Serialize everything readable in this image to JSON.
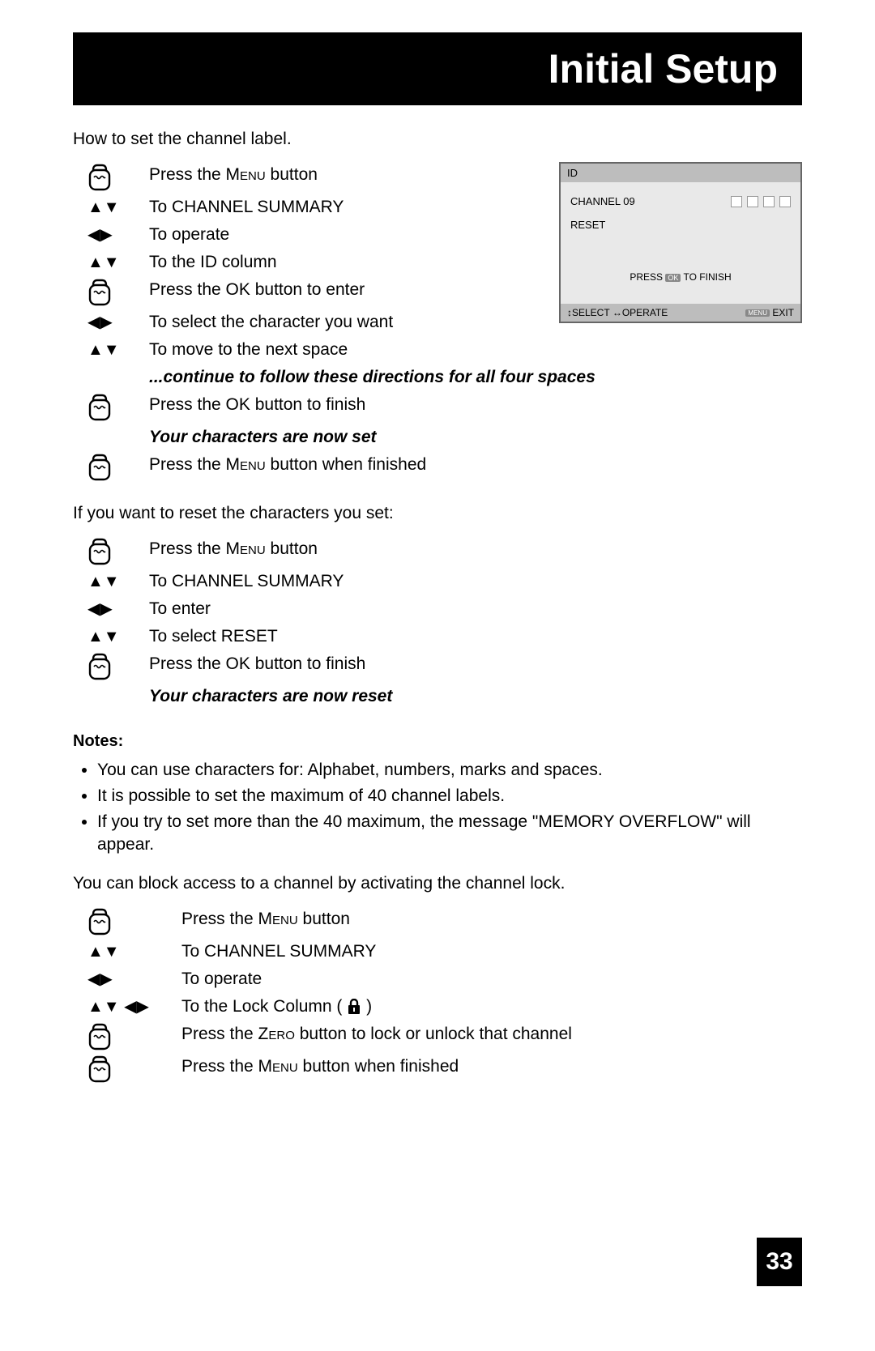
{
  "header": {
    "title": "Initial Setup"
  },
  "section1": {
    "intro": "How to set the channel label.",
    "steps": [
      {
        "icon": "remote",
        "text_prefix": "Press the ",
        "text_small": "Menu",
        "text_suffix": " button"
      },
      {
        "icon": "updown",
        "text": "To CHANNEL SUMMARY"
      },
      {
        "icon": "leftright",
        "text": "To operate"
      },
      {
        "icon": "updown",
        "text": "To the ID column"
      },
      {
        "icon": "remote",
        "text": "Press the OK button to enter"
      },
      {
        "icon": "leftright",
        "text": "To select the character you want"
      },
      {
        "icon": "updown",
        "text": "To move to the next space"
      },
      {
        "icon": "",
        "italic": "...continue to follow these directions for all four spaces"
      },
      {
        "icon": "remote",
        "text": "Press the OK button to finish"
      },
      {
        "icon": "",
        "italic": "Your characters are now set"
      },
      {
        "icon": "remote",
        "text_prefix": "Press the ",
        "text_small": "Menu",
        "text_suffix": " button when finished"
      }
    ]
  },
  "section2": {
    "intro": "If you want to reset the characters you set:",
    "steps": [
      {
        "icon": "remote",
        "text_prefix": "Press the ",
        "text_small": "Menu",
        "text_suffix": " button"
      },
      {
        "icon": "updown",
        "text": "To CHANNEL SUMMARY"
      },
      {
        "icon": "leftright",
        "text": "To enter"
      },
      {
        "icon": "updown",
        "text": "To select RESET"
      },
      {
        "icon": "remote",
        "text": "Press the OK button to finish"
      },
      {
        "icon": "",
        "italic": "Your characters are now reset"
      }
    ]
  },
  "notes": {
    "label": "Notes:",
    "items": [
      "You can use characters for: Alphabet, numbers, marks and spaces.",
      "It is possible to set the maximum of 40 channel labels.",
      "If you try to set more than the 40 maximum, the message \"MEMORY OVERFLOW\" will appear."
    ]
  },
  "section3": {
    "intro": "You can block access to a channel by activating the channel lock.",
    "steps": [
      {
        "icon": "remote",
        "text_prefix": "Press the ",
        "text_small": "Menu",
        "text_suffix": " button"
      },
      {
        "icon": "updown",
        "text": "To CHANNEL SUMMARY"
      },
      {
        "icon": "leftright",
        "text": "To operate"
      },
      {
        "icon": "allarrows",
        "text_lock": "To the Lock Column (",
        "text_lock_suffix": " )"
      },
      {
        "icon": "remote",
        "text_prefix": "Press the ",
        "text_small": "Zero",
        "text_suffix": " button to lock or unlock that channel"
      },
      {
        "icon": "remote",
        "text_prefix": "Press the ",
        "text_small": "Menu",
        "text_suffix": " button when finished"
      }
    ]
  },
  "osd": {
    "title": "ID",
    "channel_label": "CHANNEL 09",
    "reset_label": "RESET",
    "press_prefix": "PRESS",
    "press_suffix": "TO FINISH",
    "ok_badge": "OK",
    "footer_select": "SELECT",
    "footer_operate": "OPERATE",
    "footer_menu": "MENU",
    "footer_exit": "EXIT"
  },
  "page_number": "33"
}
